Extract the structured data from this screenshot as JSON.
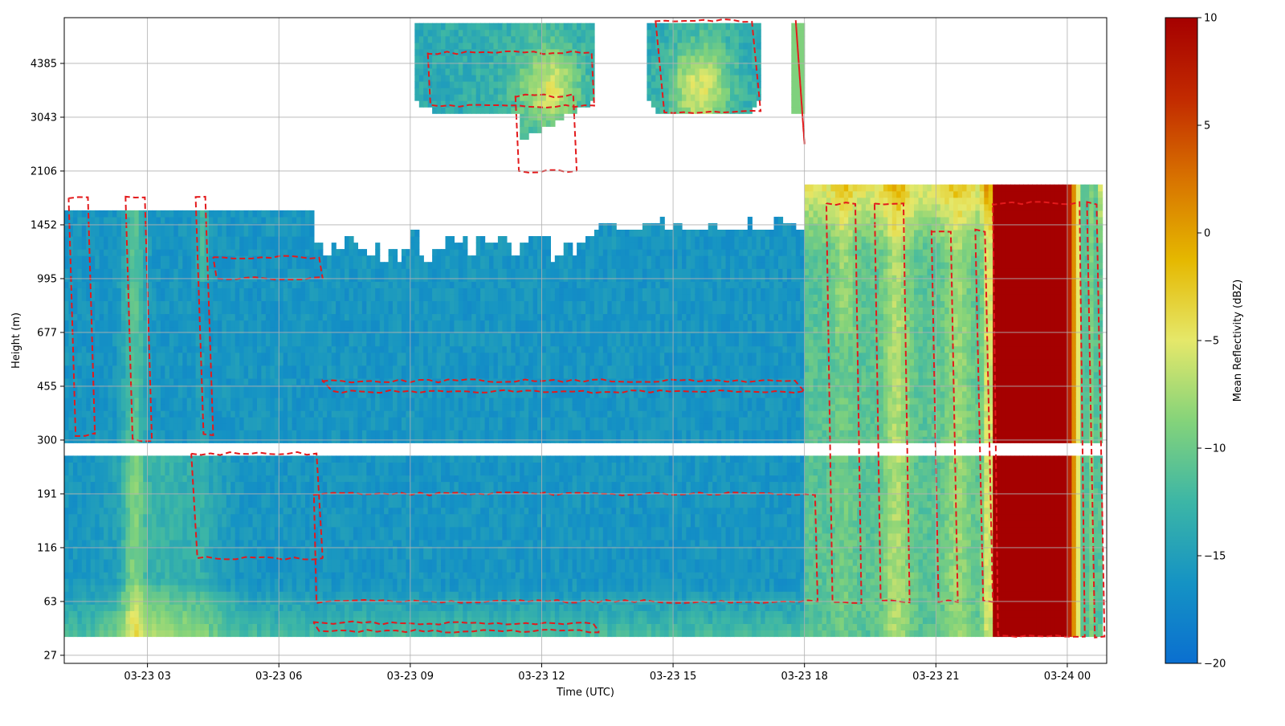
{
  "chart_data": {
    "type": "heatmap",
    "title": "",
    "xlabel": "Time (UTC)",
    "ylabel": "Height (m)",
    "x_ticks": [
      "03-23 03",
      "03-23 06",
      "03-23 09",
      "03-23 12",
      "03-23 15",
      "03-23 18",
      "03-23 21",
      "03-24 00"
    ],
    "x_tick_hours": [
      3,
      6,
      9,
      12,
      15,
      18,
      21,
      24
    ],
    "xlim_hours": [
      1.1,
      24.9
    ],
    "y_ticks": [
      "27",
      "63",
      "116",
      "191",
      "300",
      "455",
      "677",
      "995",
      "1452",
      "2106",
      "3043",
      "4385"
    ],
    "y_tick_index": [
      0,
      1,
      2,
      3,
      4,
      5,
      6,
      7,
      8,
      9,
      10,
      11
    ],
    "ylim_index": [
      -0.15,
      11.85
    ],
    "grid": true,
    "colorbar": {
      "label": "Mean Reflectivity (dBZ)",
      "ticks": [
        "10",
        "5",
        "0",
        "−5",
        "−10",
        "−15",
        "−20"
      ],
      "tick_values": [
        10,
        5,
        0,
        -5,
        -10,
        -15,
        -20
      ],
      "range": [
        -20,
        10
      ]
    },
    "colors": {
      "contour": "#e31a1c",
      "stops": [
        "#0a6fd0",
        "#1593c4",
        "#3cb6a6",
        "#84d37a",
        "#e5e86a",
        "#e5b800",
        "#d87300",
        "#c22a00",
        "#a50000"
      ]
    },
    "field_notes": {
      "low_level_band_dbz_range": [
        -17,
        -9
      ],
      "precip_core_hours": [
        22.3,
        24.0
      ],
      "precip_core_dbz": 10,
      "data_gap_height_index": [
        3.75,
        4.0
      ],
      "upper_cloud_layers_hours": [
        [
          9.1,
          13.2
        ],
        [
          14.4,
          17.0
        ],
        [
          17.7,
          18.0
        ]
      ]
    }
  }
}
